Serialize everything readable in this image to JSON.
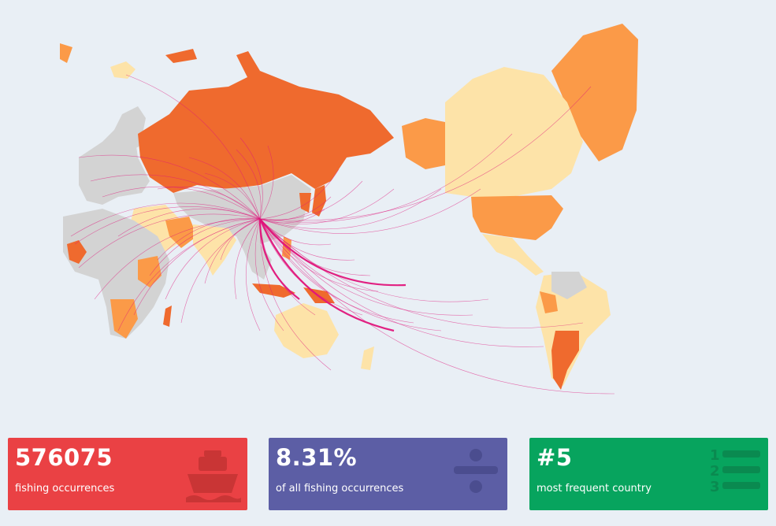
{
  "map": {
    "aria_label": "world map of fishing flows"
  },
  "colors": {
    "background": "#e9eff5",
    "ocean": "#e9eff5",
    "land_nodata": "#d3d3d3",
    "scale_low": "#fde3a8",
    "scale_mid": "#fb9a48",
    "scale_high": "#ef6a2e",
    "scale_max": "#e3542a",
    "flow_line": "#e0157b",
    "card_1": "#ea4144",
    "card_2": "#5c5ea5",
    "card_3": "#07a45e"
  },
  "stats": [
    {
      "value": "576075",
      "label": "fishing occurrences",
      "icon": "ship-icon"
    },
    {
      "value": "8.31%",
      "label": "of all fishing occurrences",
      "icon": "divide-icon"
    },
    {
      "value": "#5",
      "label": "most frequent country",
      "icon": "ranking-list-icon"
    }
  ]
}
